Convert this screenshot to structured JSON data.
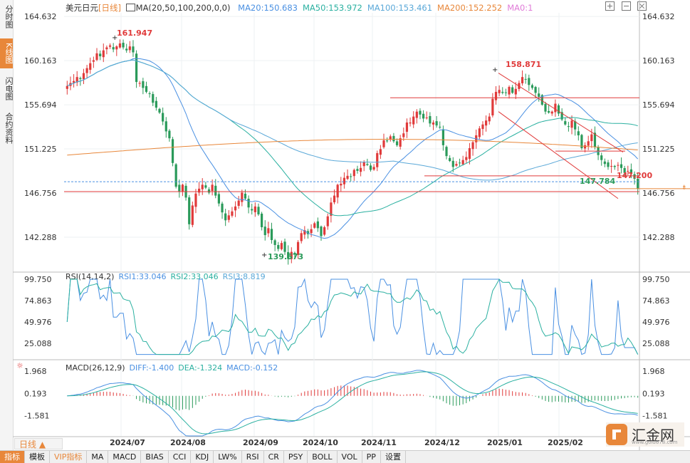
{
  "side_tabs": [
    "分时图",
    "K线图",
    "闪电图",
    "合约资料"
  ],
  "header": {
    "symbol": "美元日元",
    "period": "[日线]",
    "ma_label": "MA(20,50,100,200,0,0)",
    "ma_values": [
      {
        "text": "MA20:150.683",
        "color": "#4a90e2"
      },
      {
        "text": "MA50:153.972",
        "color": "#2ab0a0"
      },
      {
        "text": "MA100:153.461",
        "color": "#5aa8d8"
      },
      {
        "text": "MA200:152.252",
        "color": "#e8873a"
      },
      {
        "text": "MA0:1",
        "color": "#e07bd8"
      }
    ]
  },
  "top_icons": [
    "expand-icon",
    "collapse-icon",
    "close-icon"
  ],
  "rsi_label": {
    "title": "RSI(14,14,2)",
    "values": [
      {
        "text": "RSI1:33.046",
        "color": "#4a90e2"
      },
      {
        "text": "RSI2:33.046",
        "color": "#2ab0a0"
      },
      {
        "text": "RSI3:8.819",
        "color": "#5aa8d8"
      }
    ]
  },
  "macd_label": {
    "title": "MACD(26,12,9)",
    "values": [
      {
        "text": "DIFF:-1.400",
        "color": "#4a90e2"
      },
      {
        "text": "DEA:-1.324",
        "color": "#2ab0a0"
      },
      {
        "text": "MACD:-0.152",
        "color": "#4a90e2"
      }
    ]
  },
  "period_tag": "日线 ▲",
  "bottom_tabs": [
    "指标",
    "模板",
    "VIP指标",
    "MA",
    "MACD",
    "BIAS",
    "CCI",
    "KDJ",
    "LW%",
    "RSI",
    "CR",
    "PSY",
    "BOLL",
    "VOL",
    "PP",
    "设置"
  ],
  "logo": {
    "name": "汇金网",
    "url": "www.gold678.com"
  },
  "chart_data": [
    {
      "type": "candlestick",
      "title": "美元日元 [日线]",
      "y_ticks": [
        "164.632",
        "160.163",
        "155.694",
        "151.225",
        "146.756",
        "142.288"
      ],
      "ylim": [
        138.9,
        165.0
      ],
      "x_ticks": [
        "2024/07",
        "2024/08",
        "2024/09",
        "2024/10",
        "2024/11",
        "2024/12",
        "2025/01",
        "2025/02"
      ],
      "annotations": [
        {
          "text": "161.947",
          "color": "#e03a3a"
        },
        {
          "text": "158.871",
          "color": "#e03a3a"
        },
        {
          "text": "139.573",
          "color": "#2a9a5a"
        },
        {
          "text": "147.784",
          "color": "#2a9a5a"
        },
        {
          "text": "147.200",
          "color": "#e03a3a"
        }
      ],
      "current_price": 147.2,
      "horizontal_lines": [
        156.4,
        151.0,
        148.5,
        147.9,
        146.9
      ],
      "channel_top": [
        [
          158.9,
          150.9
        ]
      ],
      "series": [
        {
          "name": "MA20",
          "color": "#4a90e2"
        },
        {
          "name": "MA50",
          "color": "#2ab0a0"
        },
        {
          "name": "MA100",
          "color": "#5aa8d8"
        },
        {
          "name": "MA200",
          "color": "#e8873a"
        }
      ],
      "closes": [
        157.6,
        157.9,
        158.1,
        158.5,
        158.3,
        158.9,
        159.4,
        159.9,
        160.2,
        160.9,
        160.6,
        161.2,
        161.5,
        161.7,
        161.3,
        161.6,
        161.9,
        161.5,
        161.2,
        161.6,
        161.0,
        158.0,
        157.9,
        157.4,
        157.0,
        156.8,
        155.9,
        155.4,
        154.9,
        154.0,
        153.0,
        152.3,
        149.8,
        147.4,
        146.9,
        147.6,
        146.3,
        143.6,
        145.5,
        146.7,
        147.2,
        147.6,
        147.3,
        146.8,
        147.6,
        146.5,
        145.7,
        144.8,
        144.0,
        144.5,
        144.9,
        145.4,
        146.0,
        146.8,
        146.2,
        145.3,
        145.0,
        145.4,
        144.6,
        143.3,
        142.5,
        143.2,
        142.0,
        141.5,
        141.1,
        141.7,
        140.8,
        140.1,
        140.8,
        140.6,
        141.8,
        142.7,
        143.0,
        142.6,
        143.1,
        143.7,
        143.2,
        142.4,
        143.3,
        144.4,
        145.8,
        146.5,
        147.6,
        147.7,
        148.3,
        148.5,
        148.4,
        149.1,
        149.0,
        149.3,
        149.9,
        149.6,
        149.1,
        149.4,
        150.8,
        151.2,
        152.1,
        152.0,
        152.5,
        152.0,
        151.6,
        152.3,
        152.8,
        153.9,
        153.9,
        154.5,
        155.0,
        154.7,
        154.3,
        154.4,
        153.8,
        153.9,
        153.6,
        153.4,
        151.6,
        150.5,
        150.0,
        149.4,
        149.7,
        149.8,
        150.1,
        150.4,
        151.3,
        151.9,
        152.6,
        153.3,
        153.7,
        154.1,
        154.5,
        156.3,
        157.0,
        157.2,
        156.9,
        156.9,
        157.5,
        156.9,
        157.3,
        157.9,
        158.5,
        158.3,
        157.7,
        157.4,
        156.9,
        156.5,
        155.7,
        155.0,
        154.9,
        155.0,
        155.8,
        154.8,
        154.2,
        153.7,
        153.5,
        154.1,
        153.2,
        152.6,
        151.3,
        151.6,
        152.0,
        152.7,
        151.4,
        150.6,
        150.1,
        149.7,
        149.4,
        149.5,
        149.4,
        149.6,
        149.3,
        148.8,
        149.0,
        148.7,
        148.2,
        147.2
      ]
    },
    {
      "type": "line",
      "title": "RSI(14,14,2)",
      "y_ticks": [
        "99.750",
        "74.863",
        "49.976",
        "25.088"
      ],
      "ylim": [
        10,
        99.75
      ],
      "series": [
        {
          "name": "RSI1",
          "color": "#4a90e2"
        },
        {
          "name": "RSI2",
          "color": "#2ab0a0"
        },
        {
          "name": "RSI3",
          "color": "#5aa8d8"
        }
      ]
    },
    {
      "type": "bar",
      "title": "MACD(26,12,9)",
      "y_ticks": [
        "1.968",
        "0.193",
        "-1.581"
      ],
      "ylim": [
        -3.2,
        2.6
      ],
      "series": [
        {
          "name": "DIFF",
          "color": "#4a90e2"
        },
        {
          "name": "DEA",
          "color": "#2ab0a0"
        },
        {
          "name": "MACD",
          "color": "#e03a3a"
        }
      ]
    }
  ]
}
